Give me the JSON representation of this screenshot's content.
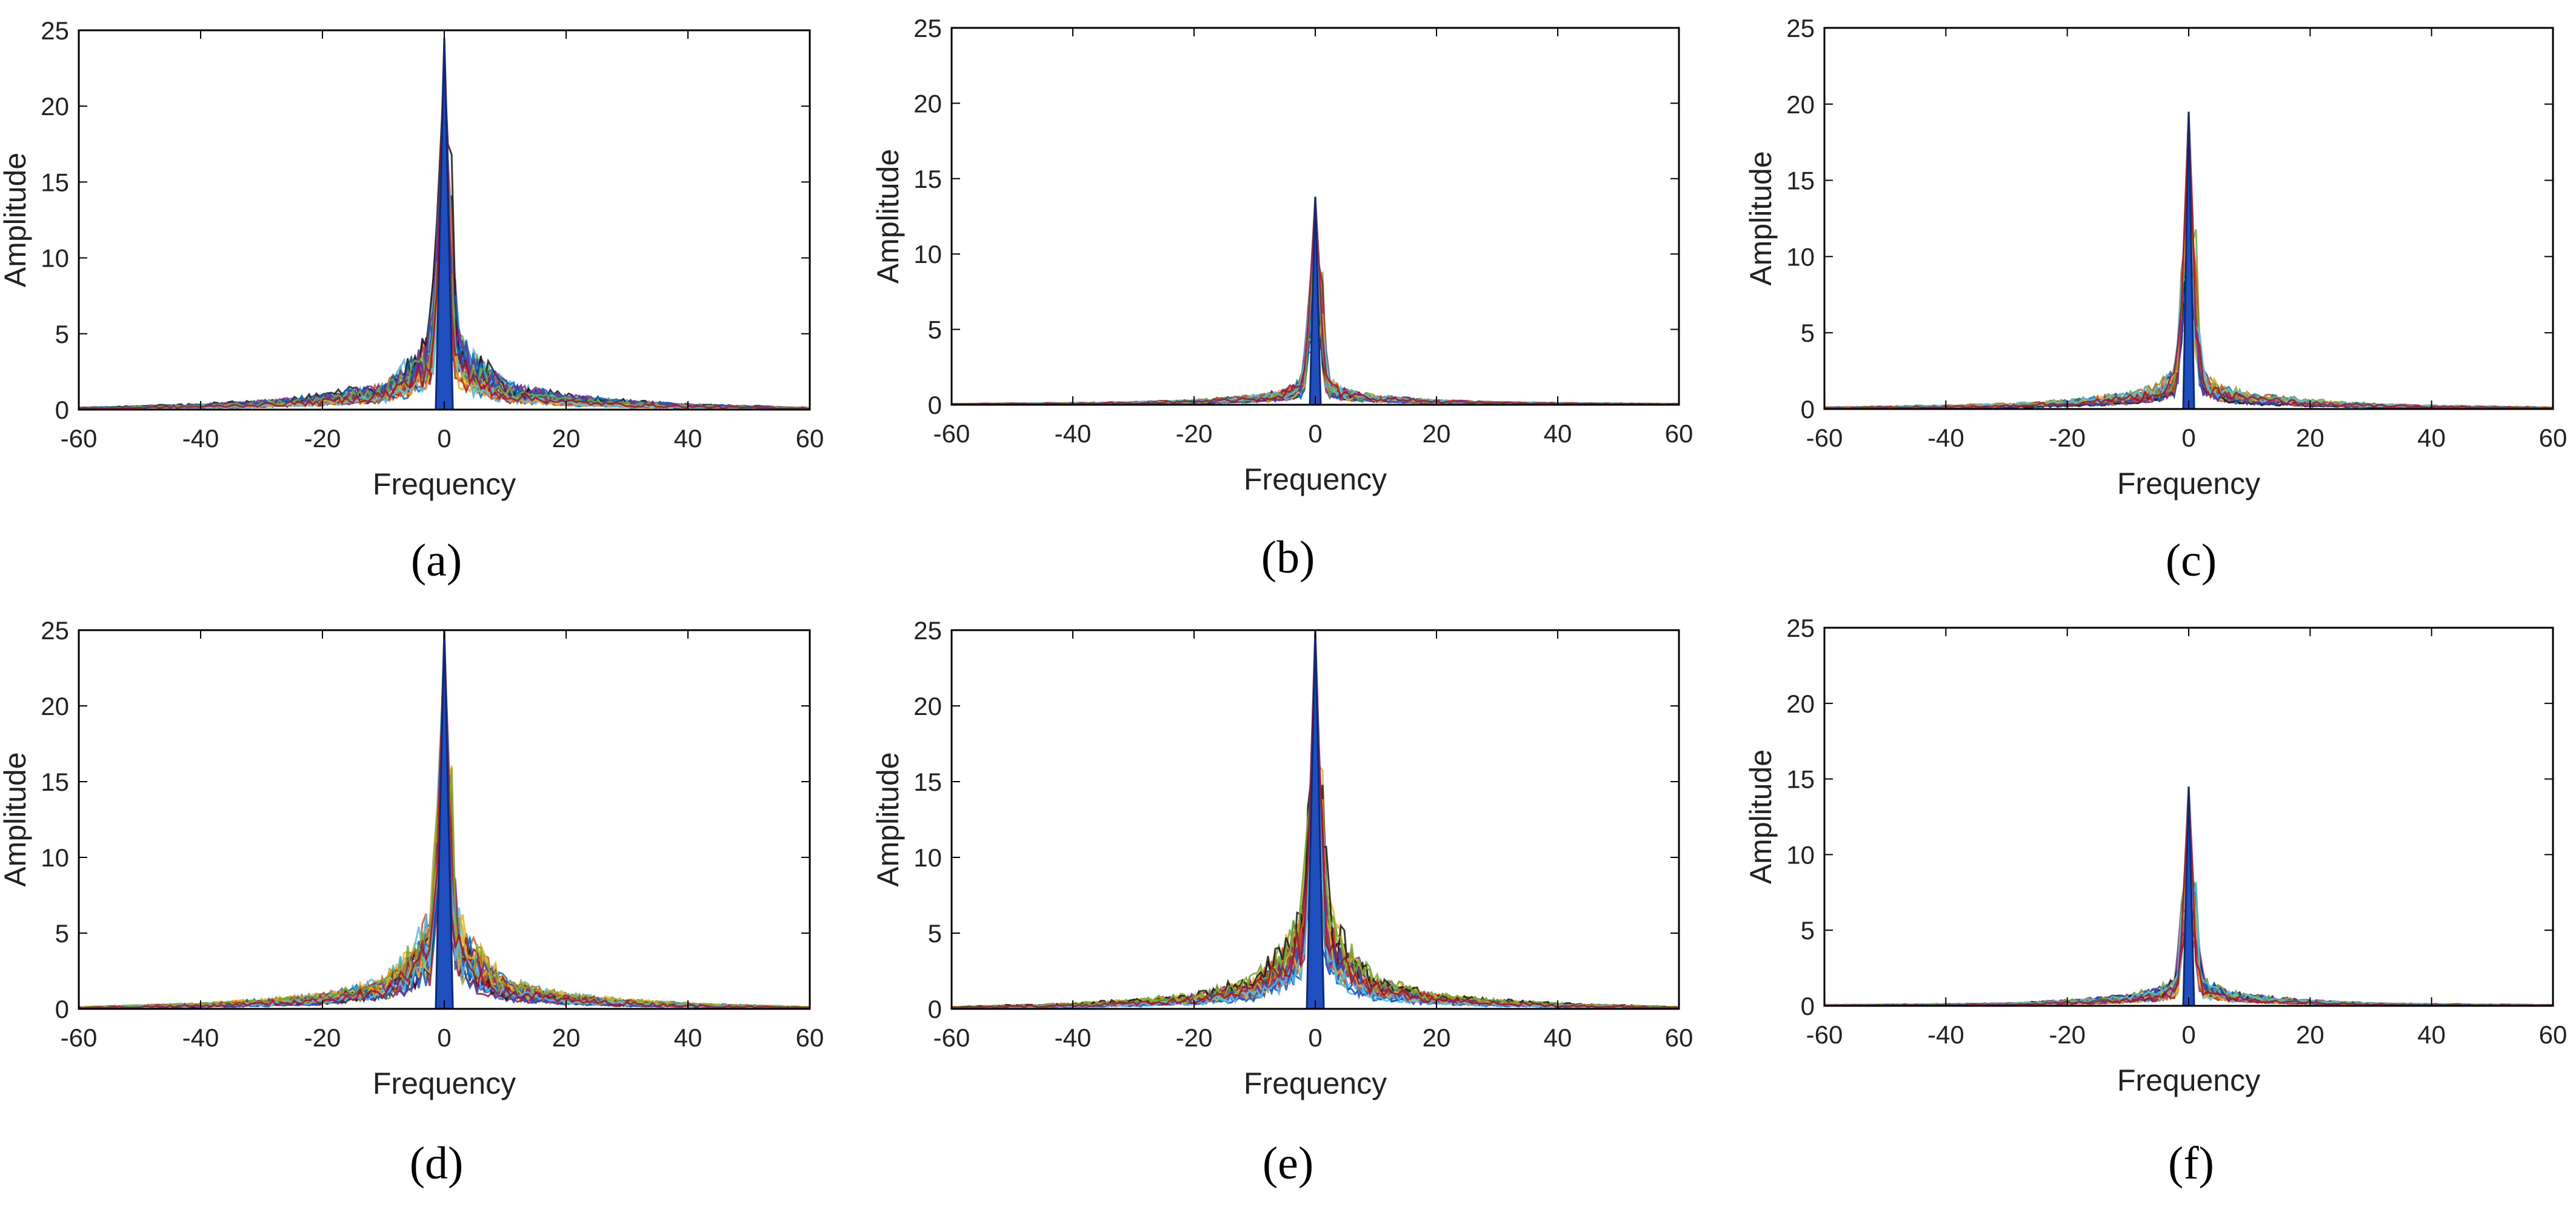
{
  "figure": {
    "panels": [
      {
        "id": "a",
        "caption": "(a)"
      },
      {
        "id": "b",
        "caption": "(b)"
      },
      {
        "id": "c",
        "caption": "(c)"
      },
      {
        "id": "d",
        "caption": "(d)"
      },
      {
        "id": "e",
        "caption": "(e)"
      },
      {
        "id": "f",
        "caption": "(f)"
      }
    ]
  },
  "chart_data": [
    {
      "panel": "a",
      "type": "line",
      "xlabel": "Frequency",
      "ylabel": "Amplitude",
      "xlim": [
        -60,
        60
      ],
      "ylim": [
        0,
        25
      ],
      "xticks": [
        -60,
        -40,
        -20,
        0,
        20,
        40,
        60
      ],
      "yticks": [
        0,
        5,
        10,
        15,
        20,
        25
      ],
      "grid": false,
      "n_overlaid_traces": "many",
      "peak": {
        "x": 0,
        "y": 24.5
      },
      "envelope_at": {
        "x_abs": [
          0,
          2,
          5,
          10,
          20,
          30,
          40,
          60
        ],
        "y": [
          24.5,
          4.8,
          3.0,
          1.5,
          0.8,
          0.5,
          0.3,
          0.1
        ]
      }
    },
    {
      "panel": "b",
      "type": "line",
      "xlabel": "Frequency",
      "ylabel": "Amplitude",
      "xlim": [
        -60,
        60
      ],
      "ylim": [
        0,
        25
      ],
      "xticks": [
        -60,
        -40,
        -20,
        0,
        20,
        40,
        60
      ],
      "yticks": [
        0,
        5,
        10,
        15,
        20,
        25
      ],
      "grid": false,
      "n_overlaid_traces": "many",
      "peak": {
        "x": 0,
        "y": 13.8
      },
      "envelope_at": {
        "x_abs": [
          0,
          2,
          5,
          10,
          20,
          30,
          40,
          60
        ],
        "y": [
          13.8,
          1.5,
          0.8,
          0.5,
          0.25,
          0.15,
          0.1,
          0.05
        ]
      }
    },
    {
      "panel": "c",
      "type": "line",
      "xlabel": "Frequency",
      "ylabel": "Amplitude",
      "xlim": [
        -60,
        60
      ],
      "ylim": [
        0,
        25
      ],
      "xticks": [
        -60,
        -40,
        -20,
        0,
        20,
        40,
        60
      ],
      "yticks": [
        0,
        5,
        10,
        15,
        20,
        25
      ],
      "grid": false,
      "n_overlaid_traces": "many",
      "peak": {
        "x": 0,
        "y": 19.5
      },
      "envelope_at": {
        "x_abs": [
          0,
          2,
          5,
          10,
          20,
          30,
          40,
          60
        ],
        "y": [
          19.5,
          2.5,
          1.4,
          0.9,
          0.5,
          0.3,
          0.2,
          0.1
        ]
      }
    },
    {
      "panel": "d",
      "type": "line",
      "xlabel": "Frequency",
      "ylabel": "Amplitude",
      "xlim": [
        -60,
        60
      ],
      "ylim": [
        0,
        25
      ],
      "xticks": [
        -60,
        -40,
        -20,
        0,
        20,
        40,
        60
      ],
      "yticks": [
        0,
        5,
        10,
        15,
        20,
        25
      ],
      "grid": false,
      "n_overlaid_traces": "many",
      "peak": {
        "x": 0,
        "y": 25
      },
      "envelope_at": {
        "x_abs": [
          0,
          2,
          5,
          10,
          20,
          30,
          40,
          60
        ],
        "y": [
          25,
          5.5,
          3.5,
          1.6,
          0.8,
          0.5,
          0.3,
          0.1
        ]
      }
    },
    {
      "panel": "e",
      "type": "line",
      "xlabel": "Frequency",
      "ylabel": "Amplitude",
      "xlim": [
        -60,
        60
      ],
      "ylim": [
        0,
        25
      ],
      "xticks": [
        -60,
        -40,
        -20,
        0,
        20,
        40,
        60
      ],
      "yticks": [
        0,
        5,
        10,
        15,
        20,
        25
      ],
      "grid": false,
      "n_overlaid_traces": "many",
      "peak": {
        "x": 0,
        "y": 25
      },
      "envelope_at": {
        "x_abs": [
          0,
          2,
          5,
          10,
          20,
          30,
          40,
          60
        ],
        "y": [
          25,
          5.8,
          3.6,
          1.7,
          0.8,
          0.5,
          0.3,
          0.1
        ]
      }
    },
    {
      "panel": "f",
      "type": "line",
      "xlabel": "Frequency",
      "ylabel": "Amplitude",
      "xlim": [
        -60,
        60
      ],
      "ylim": [
        0,
        25
      ],
      "xticks": [
        -60,
        -40,
        -20,
        0,
        20,
        40,
        60
      ],
      "yticks": [
        0,
        5,
        10,
        15,
        20,
        25
      ],
      "grid": false,
      "n_overlaid_traces": "many",
      "peak": {
        "x": 0,
        "y": 14.5
      },
      "envelope_at": {
        "x_abs": [
          0,
          2,
          5,
          10,
          20,
          30,
          40,
          60
        ],
        "y": [
          14.5,
          1.7,
          1.0,
          0.6,
          0.3,
          0.15,
          0.1,
          0.05
        ]
      }
    }
  ],
  "colors": {
    "axes": "#000000",
    "traces": [
      "#1f4fbf",
      "#0072bd",
      "#d95319",
      "#edb120",
      "#7e2f8e",
      "#77ac30",
      "#4dbeee",
      "#a2142f",
      "#1a1a1a"
    ]
  }
}
